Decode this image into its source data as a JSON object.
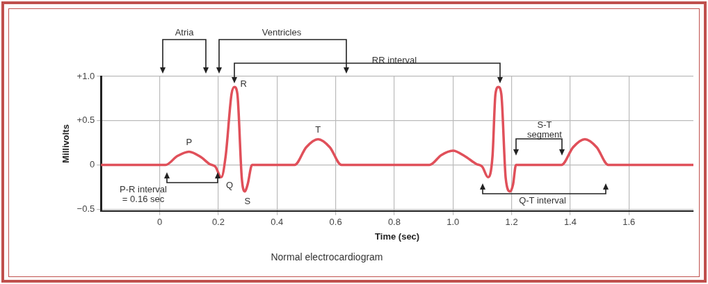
{
  "chart_data": {
    "type": "line",
    "xlabel": "Time (sec)",
    "ylabel": "Millivolts",
    "x": [
      -0.2,
      0.02,
      0.06,
      0.1,
      0.14,
      0.17,
      0.19,
      0.21,
      0.225,
      0.245,
      0.255,
      0.265,
      0.28,
      0.29,
      0.3,
      0.315,
      0.46,
      0.5,
      0.54,
      0.58,
      0.62,
      0.92,
      0.96,
      1.0,
      1.04,
      1.08,
      1.1,
      1.12,
      1.135,
      1.145,
      1.155,
      1.165,
      1.18,
      1.195,
      1.205,
      1.215,
      1.37,
      1.41,
      1.45,
      1.49,
      1.53,
      1.82
    ],
    "series": [
      {
        "color": "#e0505a",
        "values": [
          0,
          0,
          0.1,
          0.15,
          0.09,
          0.01,
          -0.02,
          -0.14,
          0.1,
          0.8,
          0.88,
          0.8,
          -0.15,
          -0.3,
          -0.22,
          0,
          0,
          0.2,
          0.29,
          0.2,
          0,
          0,
          0.11,
          0.16,
          0.1,
          0.01,
          -0.02,
          -0.14,
          0.1,
          0.8,
          0.88,
          0.8,
          -0.15,
          -0.3,
          -0.22,
          0,
          0,
          0.2,
          0.29,
          0.2,
          0,
          0
        ]
      }
    ],
    "xlim": [
      -0.2,
      1.82
    ],
    "xticks": [
      0,
      0.2,
      0.4,
      0.6,
      0.8,
      {
        "value": 1,
        "label": "1.0"
      },
      1.2,
      1.4,
      1.6
    ],
    "ylim": [
      -0.52,
      1.0
    ],
    "yticks": [
      {
        "value": -0.5,
        "label": "−0.5"
      },
      0,
      {
        "value": 0.5,
        "label": "+0.5"
      },
      {
        "value": 1,
        "label": "+1.0"
      }
    ],
    "grid": true,
    "marker": "none",
    "line_style": "solid",
    "annotations": [
      {
        "text": "P",
        "x": 0.1,
        "y": 0.15
      },
      {
        "text": "Q",
        "x": 0.21,
        "y": -0.14
      },
      {
        "text": "R",
        "x": 0.255,
        "y": 0.88
      },
      {
        "text": "S",
        "x": 0.29,
        "y": -0.3
      },
      {
        "text": "T",
        "x": 0.54,
        "y": 0.29
      },
      "Atria",
      "Ventricles",
      "RR interval",
      {
        "text": "P-R interval\n= 0.16 sec",
        "x": 0.02,
        "y": 0
      },
      "S-T\nsegment",
      "Q-T interval",
      "Normal electrocardiogram"
    ]
  }
}
